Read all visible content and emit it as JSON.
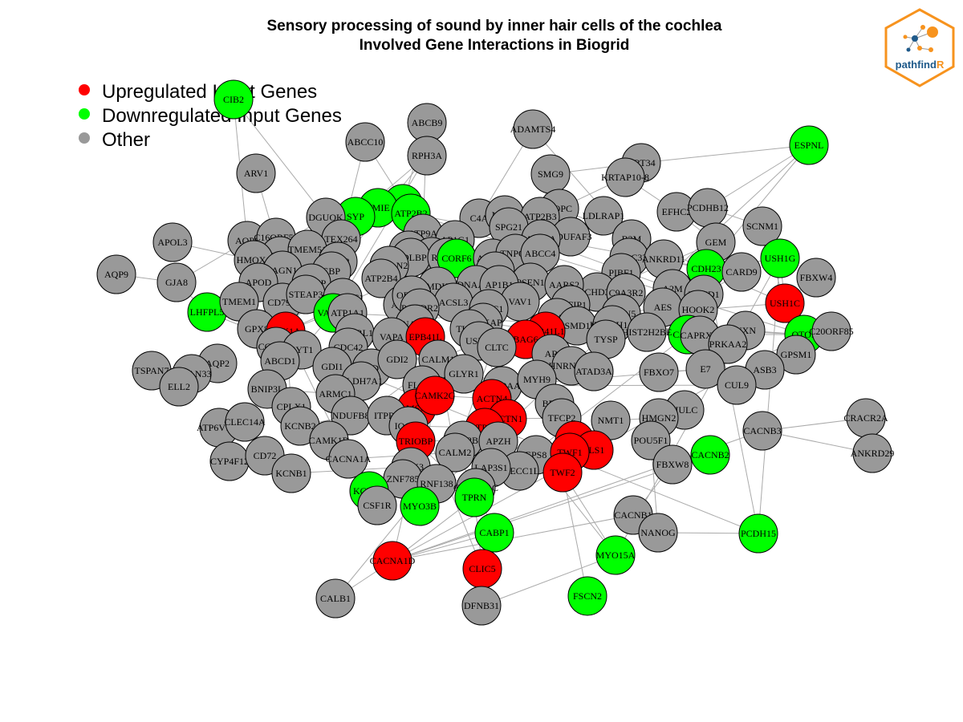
{
  "title": {
    "line1": "Sensory processing of sound by inner hair cells of the cochlea",
    "line2": "Involved Gene Interactions in Biogrid"
  },
  "legend": [
    {
      "label": "Upregulated Input Genes",
      "color": "#ff0000"
    },
    {
      "label": "Downregulated Input Genes",
      "color": "#00ff00"
    },
    {
      "label": "Other",
      "color": "#999999"
    }
  ],
  "logo": {
    "text_a": "pathfind",
    "text_b": "R",
    "border_color": "#f7931e",
    "text_color": "#1f5a8a"
  },
  "colors": {
    "up": "#ff0000",
    "down": "#00ff00",
    "other": "#999999",
    "edge": "#aaaaaa"
  },
  "nodes": [
    {
      "id": "CIB2",
      "type": "down"
    },
    {
      "id": "ABCB9",
      "type": "other"
    },
    {
      "id": "ADAMTS4",
      "type": "other"
    },
    {
      "id": "ABCC10",
      "type": "other"
    },
    {
      "id": "RPH3A",
      "type": "other"
    },
    {
      "id": "ESPNL",
      "type": "down"
    },
    {
      "id": "KRT34",
      "type": "other"
    },
    {
      "id": "ARV1",
      "type": "other"
    },
    {
      "id": "SMG9",
      "type": "other"
    },
    {
      "id": "KRTAP10-8",
      "type": "other"
    },
    {
      "id": "ARL6IP1",
      "type": "down"
    },
    {
      "id": "TMIE",
      "type": "down"
    },
    {
      "id": "SYP",
      "type": "down"
    },
    {
      "id": "ATP2B2",
      "type": "down"
    },
    {
      "id": "GOPC",
      "type": "other"
    },
    {
      "id": "EFHC2",
      "type": "other"
    },
    {
      "id": "PCDHB12",
      "type": "other"
    },
    {
      "id": "DGUOK",
      "type": "other"
    },
    {
      "id": "C4A",
      "type": "other"
    },
    {
      "id": "NME4",
      "type": "other"
    },
    {
      "id": "ATP2B3",
      "type": "other"
    },
    {
      "id": "LDLRAP1",
      "type": "other"
    },
    {
      "id": "SCNM1",
      "type": "other"
    },
    {
      "id": "APOL3",
      "type": "other"
    },
    {
      "id": "AQP6",
      "type": "other"
    },
    {
      "id": "C16ORF58",
      "type": "other"
    },
    {
      "id": "TEX264",
      "type": "other"
    },
    {
      "id": "ATP9A",
      "type": "other"
    },
    {
      "id": "SPG21",
      "type": "other"
    },
    {
      "id": "NDUFAF3",
      "type": "other"
    },
    {
      "id": "B2M",
      "type": "other"
    },
    {
      "id": "GEM",
      "type": "other"
    },
    {
      "id": "USH1G",
      "type": "down"
    },
    {
      "id": "AQP9",
      "type": "other"
    },
    {
      "id": "ERMP1",
      "type": "other"
    },
    {
      "id": "HMOX1",
      "type": "other"
    },
    {
      "id": "TMEM51",
      "type": "other"
    },
    {
      "id": "C12ORF10",
      "type": "other"
    },
    {
      "id": "AP1G1",
      "type": "other"
    },
    {
      "id": "ATG9A",
      "type": "other"
    },
    {
      "id": "CCDC33",
      "type": "other"
    },
    {
      "id": "ANKRD11",
      "type": "other"
    },
    {
      "id": "CDH23",
      "type": "down"
    },
    {
      "id": "CARD9",
      "type": "other"
    },
    {
      "id": "FBXW4",
      "type": "other"
    },
    {
      "id": "GJA8",
      "type": "other"
    },
    {
      "id": "JAGN1",
      "type": "other"
    },
    {
      "id": "CDS2",
      "type": "other"
    },
    {
      "id": "PHB",
      "type": "other"
    },
    {
      "id": "HDLBP",
      "type": "other"
    },
    {
      "id": "RAB3A",
      "type": "other"
    },
    {
      "id": "CORF6",
      "type": "down"
    },
    {
      "id": "ACAD9",
      "type": "other"
    },
    {
      "id": "TNPO3",
      "type": "other"
    },
    {
      "id": "ABCC4",
      "type": "other"
    },
    {
      "id": "PIBF1",
      "type": "other"
    },
    {
      "id": "A2M",
      "type": "other"
    },
    {
      "id": "USH1C",
      "type": "up"
    },
    {
      "id": "LHFPL5",
      "type": "down"
    },
    {
      "id": "APOD",
      "type": "other"
    },
    {
      "id": "TGOLN2",
      "type": "other"
    },
    {
      "id": "EBP",
      "type": "other"
    },
    {
      "id": "HGS",
      "type": "other"
    },
    {
      "id": "PSEN1",
      "type": "other"
    },
    {
      "id": "CHD3",
      "type": "other"
    },
    {
      "id": "C9A3R2",
      "type": "other"
    },
    {
      "id": "ENKD1",
      "type": "other"
    },
    {
      "id": "AES",
      "type": "other"
    },
    {
      "id": "HOOK2",
      "type": "other"
    },
    {
      "id": "TMEM1",
      "type": "other"
    },
    {
      "id": "CD79A",
      "type": "other"
    },
    {
      "id": "LNPEP",
      "type": "other"
    },
    {
      "id": "STEAP3",
      "type": "other"
    },
    {
      "id": "HMMDC1",
      "type": "other"
    },
    {
      "id": "ATP2B4",
      "type": "other"
    },
    {
      "id": "MDH",
      "type": "other"
    },
    {
      "id": "DNAAF2",
      "type": "other"
    },
    {
      "id": "AP1B1",
      "type": "other"
    },
    {
      "id": "AARS2",
      "type": "other"
    },
    {
      "id": "VAV1",
      "type": "other"
    },
    {
      "id": "CYFIP1",
      "type": "other"
    },
    {
      "id": "PFDN5",
      "type": "other"
    },
    {
      "id": "VAMP2",
      "type": "down"
    },
    {
      "id": "ATP1A1",
      "type": "other"
    },
    {
      "id": "ARF6",
      "type": "other"
    },
    {
      "id": "ORF3A",
      "type": "other"
    },
    {
      "id": "ACSL3",
      "type": "other"
    },
    {
      "id": "NR3C1",
      "type": "other"
    },
    {
      "id": "PRMT5",
      "type": "other"
    },
    {
      "id": "PSMD11",
      "type": "other"
    },
    {
      "id": "CABP2",
      "type": "down"
    },
    {
      "id": "NXN",
      "type": "other"
    },
    {
      "id": "OTOF",
      "type": "down"
    },
    {
      "id": "C20ORF85",
      "type": "other"
    },
    {
      "id": "GPX8",
      "type": "other"
    },
    {
      "id": "STX1A",
      "type": "up"
    },
    {
      "id": "PCDDR2",
      "type": "other"
    },
    {
      "id": "NAX1",
      "type": "other"
    },
    {
      "id": "CASKAP",
      "type": "other"
    },
    {
      "id": "EPB41L1",
      "type": "up"
    },
    {
      "id": "HIST1H1A",
      "type": "other"
    },
    {
      "id": "HIST2H2BE",
      "type": "other"
    },
    {
      "id": "CAPRXX",
      "type": "other"
    },
    {
      "id": "PRKAA2",
      "type": "other"
    },
    {
      "id": "GPSM1",
      "type": "other"
    },
    {
      "id": "CCDC15",
      "type": "other"
    },
    {
      "id": "SYT1",
      "type": "other"
    },
    {
      "id": "ADERL1",
      "type": "other"
    },
    {
      "id": "VAPA",
      "type": "other"
    },
    {
      "id": "EPB41L",
      "type": "up"
    },
    {
      "id": "TUFM",
      "type": "other"
    },
    {
      "id": "USP19",
      "type": "other"
    },
    {
      "id": "BAG6",
      "type": "up"
    },
    {
      "id": "TYSP",
      "type": "other"
    },
    {
      "id": "AR",
      "type": "other"
    },
    {
      "id": "HNRNPDL",
      "type": "other"
    },
    {
      "id": "TSPAN7",
      "type": "other"
    },
    {
      "id": "AQP2",
      "type": "other"
    },
    {
      "id": "CDC42",
      "type": "other"
    },
    {
      "id": "ACADVL",
      "type": "other"
    },
    {
      "id": "GDI2",
      "type": "other"
    },
    {
      "id": "CALM1",
      "type": "other"
    },
    {
      "id": "CLTC",
      "type": "other"
    },
    {
      "id": "ATAD3A",
      "type": "other"
    },
    {
      "id": "FBXO7",
      "type": "other"
    },
    {
      "id": "E7",
      "type": "other"
    },
    {
      "id": "ASB3",
      "type": "other"
    },
    {
      "id": "TSPAN33",
      "type": "other"
    },
    {
      "id": "ELL2",
      "type": "other"
    },
    {
      "id": "ABCD1",
      "type": "other"
    },
    {
      "id": "GDI1",
      "type": "other"
    },
    {
      "id": "ALDH7A1",
      "type": "other"
    },
    {
      "id": "GLYR1",
      "type": "other"
    },
    {
      "id": "HSP90AA1",
      "type": "other"
    },
    {
      "id": "CUL9",
      "type": "other"
    },
    {
      "id": "BNIP3L",
      "type": "other"
    },
    {
      "id": "ARMC1",
      "type": "other"
    },
    {
      "id": "FLOT1",
      "type": "other"
    },
    {
      "id": "MYH9",
      "type": "other"
    },
    {
      "id": "BRD4",
      "type": "other"
    },
    {
      "id": "HULC",
      "type": "other"
    },
    {
      "id": "CPLX1",
      "type": "other"
    },
    {
      "id": "MSN",
      "type": "up"
    },
    {
      "id": "CAMK2G",
      "type": "up"
    },
    {
      "id": "ACTN4",
      "type": "up"
    },
    {
      "id": "ACTN1",
      "type": "up"
    },
    {
      "id": "TFCP2",
      "type": "other"
    },
    {
      "id": "NMT1",
      "type": "other"
    },
    {
      "id": "HMGN2",
      "type": "other"
    },
    {
      "id": "ATP6V1B1",
      "type": "other"
    },
    {
      "id": "CLEC14A",
      "type": "other"
    },
    {
      "id": "KCNB2",
      "type": "other"
    },
    {
      "id": "NDUFB8",
      "type": "other"
    },
    {
      "id": "ITPR3",
      "type": "other"
    },
    {
      "id": "IQCB1",
      "type": "other"
    },
    {
      "id": "PTPN4",
      "type": "up"
    },
    {
      "id": "CRACR2A",
      "type": "other"
    },
    {
      "id": "CACNB3",
      "type": "other"
    },
    {
      "id": "CAMK1D",
      "type": "other"
    },
    {
      "id": "TRIOBP",
      "type": "up"
    },
    {
      "id": "SNX2B",
      "type": "other"
    },
    {
      "id": "APZH",
      "type": "other"
    },
    {
      "id": "EPS8",
      "type": "other"
    },
    {
      "id": "EPS8L2",
      "type": "up"
    },
    {
      "id": "PLS1",
      "type": "up"
    },
    {
      "id": "POU5F1",
      "type": "other"
    },
    {
      "id": "CACNB2",
      "type": "down"
    },
    {
      "id": "CYP4F12",
      "type": "other"
    },
    {
      "id": "CD72",
      "type": "other"
    },
    {
      "id": "CACNA1A",
      "type": "other"
    },
    {
      "id": "CALM2",
      "type": "other"
    },
    {
      "id": "TWF1",
      "type": "up"
    },
    {
      "id": "TWF2",
      "type": "up"
    },
    {
      "id": "FBXW8",
      "type": "other"
    },
    {
      "id": "ANKRD29",
      "type": "other"
    },
    {
      "id": "KCNB1",
      "type": "other"
    },
    {
      "id": "ANK3",
      "type": "other"
    },
    {
      "id": "ZNF785",
      "type": "other"
    },
    {
      "id": "SPECC1L",
      "type": "other"
    },
    {
      "id": "LAP3S1",
      "type": "other"
    },
    {
      "id": "KCNQ4",
      "type": "down"
    },
    {
      "id": "CSF1R",
      "type": "other"
    },
    {
      "id": "RNF138",
      "type": "other"
    },
    {
      "id": "CACNA1C",
      "type": "other"
    },
    {
      "id": "MYO3B",
      "type": "down"
    },
    {
      "id": "TPRN",
      "type": "down"
    },
    {
      "id": "CACNB1",
      "type": "other"
    },
    {
      "id": "NANOG",
      "type": "other"
    },
    {
      "id": "PCDH15",
      "type": "down"
    },
    {
      "id": "CABP1",
      "type": "down"
    },
    {
      "id": "MYO15A",
      "type": "down"
    },
    {
      "id": "CACNA1D",
      "type": "up"
    },
    {
      "id": "CLIC5",
      "type": "up"
    },
    {
      "id": "FSCN2",
      "type": "down"
    },
    {
      "id": "CALB1",
      "type": "other"
    },
    {
      "id": "DFNB31",
      "type": "other"
    }
  ],
  "edges": [
    [
      "CIB2",
      "DGUOK"
    ],
    [
      "CIB2",
      "AQP6"
    ],
    [
      "ABCB9",
      "ATP9A"
    ],
    [
      "ABCB9",
      "ARL6IP1"
    ],
    [
      "ADAMTS4",
      "C4A"
    ],
    [
      "ADAMTS4",
      "A2M"
    ],
    [
      "ABCC10",
      "TEX264"
    ],
    [
      "ABCC10",
      "ATP2B2"
    ],
    [
      "RPH3A",
      "SYP"
    ],
    [
      "RPH3A",
      "VAMP2"
    ],
    [
      "RPH3A",
      "STX1A"
    ],
    [
      "ESPNL",
      "CDH23"
    ],
    [
      "ESPNL",
      "PCDHB12"
    ],
    [
      "ESPNL",
      "KRT34"
    ],
    [
      "KRT34",
      "KRTAP10-8"
    ],
    [
      "KRT34",
      "SMG9"
    ],
    [
      "KRTAP10-8",
      "GOPC"
    ],
    [
      "KRTAP10-8",
      "EFHC2"
    ],
    [
      "ARV1",
      "ERMP1"
    ],
    [
      "SMG9",
      "GOPC"
    ],
    [
      "SMG9",
      "ATP2B3"
    ],
    [
      "ARL6IP1",
      "TMIE"
    ],
    [
      "TMIE",
      "LHFPL5"
    ],
    [
      "TMIE",
      "CDH23"
    ],
    [
      "SYP",
      "VAMP2"
    ],
    [
      "SYP",
      "STX1A"
    ],
    [
      "ATP2B2",
      "CALM1"
    ],
    [
      "ATP2B2",
      "OTOF"
    ],
    [
      "GOPC",
      "CDH23"
    ],
    [
      "EFHC2",
      "GEM"
    ],
    [
      "PCDHB12",
      "SCNM1"
    ],
    [
      "DGUOK",
      "HMOX1"
    ],
    [
      "C4A",
      "A2M"
    ],
    [
      "NME4",
      "SPG21"
    ],
    [
      "ATP2B3",
      "CALM2"
    ],
    [
      "LDLRAP1",
      "B2M"
    ],
    [
      "SCNM1",
      "USH1C"
    ],
    [
      "APOL3",
      "HMOX1"
    ],
    [
      "AQP6",
      "GJA8"
    ],
    [
      "C16ORF58",
      "JAGN1"
    ],
    [
      "TEX264",
      "CDS2"
    ],
    [
      "ATP9A",
      "AP1G1"
    ],
    [
      "SPG21",
      "TNPO3"
    ],
    [
      "NDUFAF3",
      "ACAD9"
    ],
    [
      "B2M",
      "PIBF1"
    ],
    [
      "GEM",
      "CALM1"
    ],
    [
      "USH1G",
      "USH1C"
    ],
    [
      "USH1G",
      "CDH23"
    ],
    [
      "USH1G",
      "PCDH15"
    ],
    [
      "USH1G",
      "MYO15A"
    ],
    [
      "AQP9",
      "GJA8"
    ],
    [
      "ERMP1",
      "TMEM51"
    ],
    [
      "HMOX1",
      "APOD"
    ],
    [
      "TMEM51",
      "LNPEP"
    ],
    [
      "C12ORF10",
      "HDLBP"
    ],
    [
      "AP1G1",
      "AP1B1"
    ],
    [
      "ATG9A",
      "TNPO3"
    ],
    [
      "CCDC33",
      "ANKRD11"
    ],
    [
      "ANKRD11",
      "CDH23"
    ],
    [
      "CDH23",
      "USH1C"
    ],
    [
      "CDH23",
      "PCDH15"
    ],
    [
      "CARD9",
      "ENKD1"
    ],
    [
      "FBXW4",
      "USH1C"
    ],
    [
      "GJA8",
      "LHFPL5"
    ],
    [
      "JAGN1",
      "STEAP3"
    ],
    [
      "CDS2",
      "EBP"
    ],
    [
      "PHB",
      "RAB3A"
    ],
    [
      "RAB3A",
      "STX1A"
    ],
    [
      "RAB3A",
      "CORF6"
    ],
    [
      "CORF6",
      "ACAD9"
    ],
    [
      "TNPO3",
      "PSEN1"
    ],
    [
      "ABCC4",
      "CHD3"
    ],
    [
      "PIBF1",
      "C9A3R2"
    ],
    [
      "A2M",
      "AES"
    ],
    [
      "USH1C",
      "OTOF"
    ],
    [
      "USH1C",
      "HOOK2"
    ],
    [
      "LHFPL5",
      "TMEM1"
    ],
    [
      "LHFPL5",
      "PCDH15"
    ],
    [
      "APOD",
      "CD79A"
    ],
    [
      "TGOLN2",
      "ARF6"
    ],
    [
      "HGS",
      "PSEN1"
    ],
    [
      "PSEN1",
      "AARS2"
    ],
    [
      "CHD3",
      "CYFIP1"
    ],
    [
      "ENKD1",
      "HOOK2"
    ],
    [
      "AES",
      "PFDN5"
    ],
    [
      "TMEM1",
      "GPX8"
    ],
    [
      "LNPEP",
      "HMMDC1"
    ],
    [
      "STEAP3",
      "VAMP2"
    ],
    [
      "ATP2B4",
      "CALM1"
    ],
    [
      "MDH",
      "ACSL3"
    ],
    [
      "DNAAF2",
      "AP1B1"
    ],
    [
      "VAV1",
      "NR3C1"
    ],
    [
      "CYFIP1",
      "PRMT5"
    ],
    [
      "VAMP2",
      "STX1A"
    ],
    [
      "VAMP2",
      "SYT1"
    ],
    [
      "VAMP2",
      "OTOF"
    ],
    [
      "ATP1A1",
      "ADERL1"
    ],
    [
      "ARF6",
      "NAX1"
    ],
    [
      "ORF3A",
      "PCDDR2"
    ],
    [
      "NR3C1",
      "CASKAP"
    ],
    [
      "PRMT5",
      "PSMD11"
    ],
    [
      "CABP2",
      "CACNA1D"
    ],
    [
      "CABP2",
      "OTOF"
    ],
    [
      "NXN",
      "OTOF"
    ],
    [
      "OTOF",
      "C20ORF85"
    ],
    [
      "OTOF",
      "CACNA1D"
    ],
    [
      "OTOF",
      "GPSM1"
    ],
    [
      "GPX8",
      "CCDC15"
    ],
    [
      "STX1A",
      "SYT1"
    ],
    [
      "STX1A",
      "CACNA1A"
    ],
    [
      "NAX1",
      "VAPA"
    ],
    [
      "CASKAP",
      "EPB41L1"
    ],
    [
      "EPB41L1",
      "BAG6"
    ],
    [
      "HIST1H1A",
      "HIST2H2BE"
    ],
    [
      "CAPRXX",
      "PRKAA2"
    ],
    [
      "SYT1",
      "CALM1"
    ],
    [
      "VAPA",
      "EPB41L"
    ],
    [
      "TUFM",
      "USP19"
    ],
    [
      "BAG6",
      "AR"
    ],
    [
      "TYSP",
      "HNRNPDL"
    ],
    [
      "TSPAN7",
      "AQP2"
    ],
    [
      "AQP2",
      "ELL2"
    ],
    [
      "CDC42",
      "ACADVL"
    ],
    [
      "GDI2",
      "CALM1"
    ],
    [
      "CLTC",
      "ATAD3A"
    ],
    [
      "FBXO7",
      "E7"
    ],
    [
      "ASB3",
      "CUL9"
    ],
    [
      "TSPAN33",
      "ELL2"
    ],
    [
      "ABCD1",
      "GDI1"
    ],
    [
      "GDI1",
      "ALDH7A1"
    ],
    [
      "GLYR1",
      "HSP90AA1"
    ],
    [
      "BNIP3L",
      "ARMC1"
    ],
    [
      "FLOT1",
      "MYH9"
    ],
    [
      "MYH9",
      "BRD4"
    ],
    [
      "HULC",
      "HMGN2"
    ],
    [
      "CPLX1",
      "STX1A"
    ],
    [
      "CPLX1",
      "KCNB2"
    ],
    [
      "MSN",
      "CAMK2G"
    ],
    [
      "CAMK2G",
      "ACTN4"
    ],
    [
      "ACTN4",
      "ACTN1"
    ],
    [
      "ACTN1",
      "TFCP2"
    ],
    [
      "NMT1",
      "HMGN2"
    ],
    [
      "ATP6V1B1",
      "CLEC14A"
    ],
    [
      "KCNB2",
      "NDUFB8"
    ],
    [
      "ITPR3",
      "IQCB1"
    ],
    [
      "IQCB1",
      "PTPN4"
    ],
    [
      "CRACR2A",
      "CACNB3"
    ],
    [
      "CACNB3",
      "CACNA1D"
    ],
    [
      "CAMK1D",
      "CALM1"
    ],
    [
      "TRIOBP",
      "SNX2B"
    ],
    [
      "SNX2B",
      "APZH"
    ],
    [
      "APZH",
      "EPS8"
    ],
    [
      "EPS8",
      "EPS8L2"
    ],
    [
      "EPS8L2",
      "PLS1"
    ],
    [
      "PLS1",
      "TWF1"
    ],
    [
      "POU5F1",
      "NANOG"
    ],
    [
      "CACNB2",
      "CACNA1D"
    ],
    [
      "CYP4F12",
      "CD72"
    ],
    [
      "CD72",
      "KCNB1"
    ],
    [
      "CACNA1A",
      "CALM2"
    ],
    [
      "TWF1",
      "TWF2"
    ],
    [
      "FBXW8",
      "CACNB1"
    ],
    [
      "ANKRD29",
      "CACNB3"
    ],
    [
      "KCNB1",
      "ANK3"
    ],
    [
      "ANK3",
      "ZNF785"
    ],
    [
      "SPECC1L",
      "LAP3S1"
    ],
    [
      "KCNQ4",
      "CSF1R"
    ],
    [
      "KCNQ4",
      "ANK3"
    ],
    [
      "RNF138",
      "CACNA1C"
    ],
    [
      "CACNA1C",
      "CALM2"
    ],
    [
      "MYO3B",
      "ESPNL"
    ],
    [
      "MYO3B",
      "CALM1"
    ],
    [
      "TPRN",
      "CLIC5"
    ],
    [
      "CACNB1",
      "CACNA1D"
    ],
    [
      "NANOG",
      "PCDH15"
    ],
    [
      "CABP1",
      "CACNA1D"
    ],
    [
      "CABP1",
      "CACNA1C"
    ],
    [
      "MYO15A",
      "DFNB31"
    ],
    [
      "MYO15A",
      "EPS8"
    ],
    [
      "CACNA1D",
      "CALB1"
    ],
    [
      "CACNA1D",
      "CALM1"
    ],
    [
      "CLIC5",
      "DFNB31"
    ],
    [
      "FSCN2",
      "TWF2"
    ],
    [
      "CALB1",
      "CALM2"
    ],
    [
      "DFNB31",
      "CLIC5"
    ],
    [
      "TRIOBP",
      "TPRN"
    ],
    [
      "TWF2",
      "MYO15A"
    ],
    [
      "MSN",
      "CLIC5"
    ],
    [
      "PTPN4",
      "CALM2"
    ],
    [
      "CALM1",
      "CALM2"
    ],
    [
      "HSP90AA1",
      "CALM1"
    ],
    [
      "BRD4",
      "HSP90AA1"
    ],
    [
      "AR",
      "HSP90AA1"
    ],
    [
      "GDI2",
      "RAB3A"
    ],
    [
      "CLTC",
      "HSP90AA1"
    ],
    [
      "TUFM",
      "HSP90AA1"
    ],
    [
      "E7",
      "HSP90AA1"
    ],
    [
      "CUL9",
      "HSP90AA1"
    ]
  ]
}
